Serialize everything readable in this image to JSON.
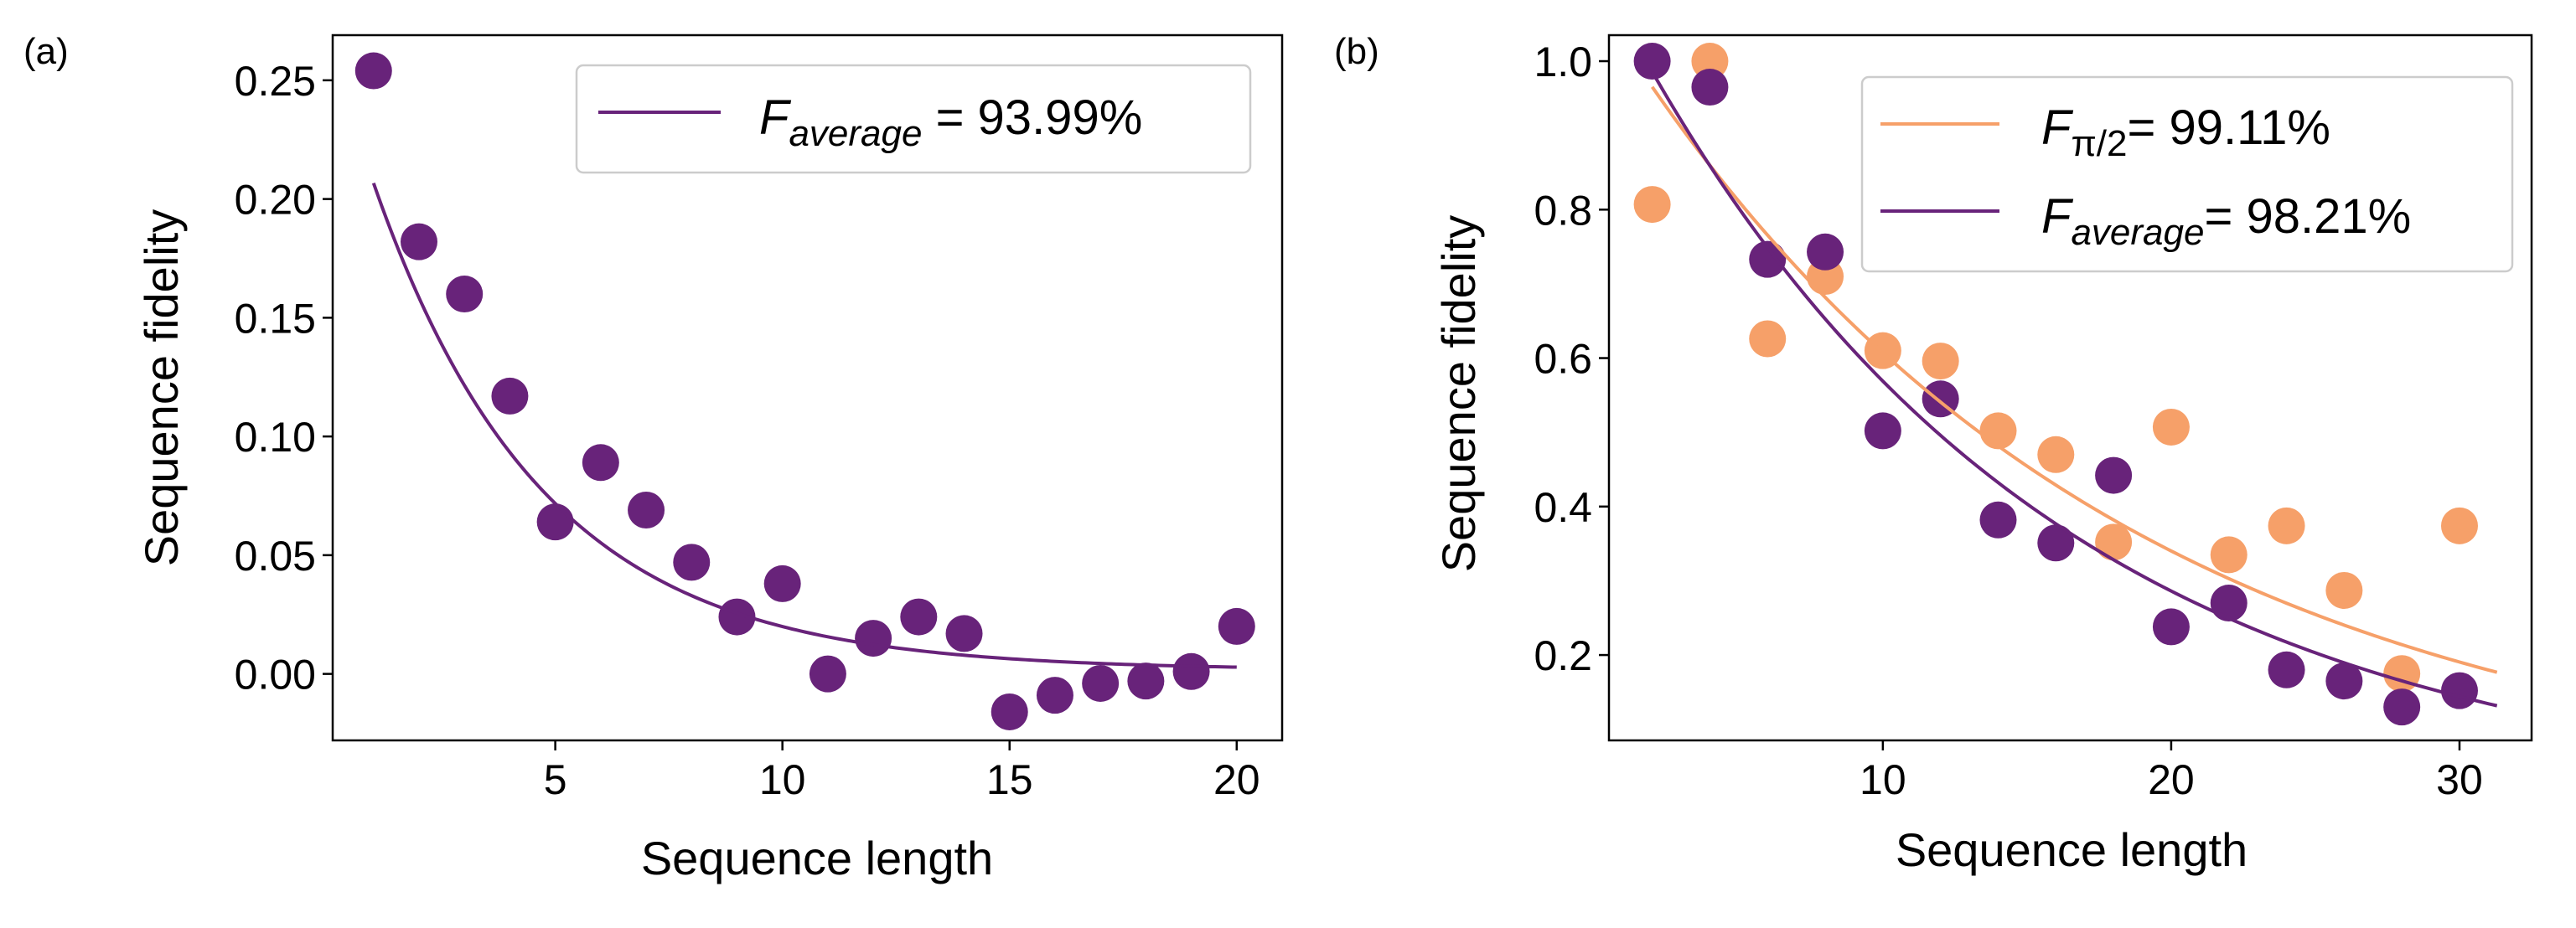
{
  "colors": {
    "purple": "#68237a",
    "orange": "#f6a069",
    "axis": "#000000",
    "legend_border": "#cccccc"
  },
  "chart_data": [
    {
      "panel_label": "(a)",
      "type": "scatter",
      "xlabel": "Sequence length",
      "ylabel": "Sequence fidelity",
      "xlim": [
        0.1,
        21.0
      ],
      "ylim": [
        -0.028,
        0.269
      ],
      "xticks": [
        5,
        10,
        15,
        20
      ],
      "xtick_labels": [
        "5",
        "10",
        "15",
        "20"
      ],
      "yticks": [
        0.0,
        0.05,
        0.1,
        0.15,
        0.2,
        0.25
      ],
      "ytick_labels": [
        "0.00",
        "0.05",
        "0.10",
        "0.15",
        "0.20",
        "0.25"
      ],
      "grid": false,
      "legend_placement": "top-right",
      "series": [
        {
          "name": "average",
          "color_key": "purple",
          "legend": {
            "symbol": "F",
            "subscript": "average",
            "suffix": " = 93.99%"
          },
          "points": {
            "x": [
              1,
              2,
              3,
              4,
              5,
              6,
              7,
              8,
              9,
              10,
              11,
              12,
              13,
              14,
              15,
              16,
              17,
              18,
              19,
              20
            ],
            "y": [
              0.254,
              0.182,
              0.16,
              0.117,
              0.064,
              0.089,
              0.069,
              0.047,
              0.024,
              0.038,
              0.0,
              0.015,
              0.024,
              0.017,
              -0.016,
              -0.009,
              -0.004,
              -0.003,
              0.001,
              0.02
            ]
          },
          "fit": {
            "model": "A*p^x + B",
            "A": 0.2682,
            "p": 0.7647,
            "B": 0.0016,
            "x_range": [
              1,
              20
            ]
          }
        }
      ]
    },
    {
      "panel_label": "(b)",
      "type": "scatter",
      "xlabel": "Sequence length",
      "ylabel": "Sequence fidelity",
      "xlim": [
        0.5,
        32.5
      ],
      "ylim": [
        0.085,
        1.035
      ],
      "xticks": [
        10,
        20,
        30
      ],
      "xtick_labels": [
        "10",
        "20",
        "30"
      ],
      "yticks": [
        0.2,
        0.4,
        0.6,
        0.8,
        1.0
      ],
      "ytick_labels": [
        "0.2",
        "0.4",
        "0.6",
        "0.8",
        "1.0"
      ],
      "grid": false,
      "legend_placement": "top-right",
      "series": [
        {
          "name": "pi/2",
          "color_key": "orange",
          "legend": {
            "symbol": "F",
            "subscript": "π/2",
            "suffix": "= 99.11%"
          },
          "points": {
            "x": [
              2,
              4,
              6,
              8,
              10,
              12,
              14,
              16,
              18,
              20,
              22,
              24,
              26,
              28,
              30
            ],
            "y": [
              0.807,
              1.0,
              0.626,
              0.71,
              0.61,
              0.596,
              0.502,
              0.47,
              0.352,
              0.507,
              0.335,
              0.374,
              0.287,
              0.175,
              0.374
            ]
          },
          "fit": {
            "model": "A*p^x",
            "A": 1.084,
            "p": 0.9437,
            "x_range": [
              2,
              31.3
            ]
          }
        },
        {
          "name": "average",
          "color_key": "purple",
          "legend": {
            "symbol": "F",
            "subscript": "average",
            "suffix": "= 98.21%"
          },
          "points": {
            "x": [
              2,
              4,
              6,
              8,
              10,
              12,
              14,
              16,
              18,
              20,
              22,
              24,
              26,
              28,
              30
            ],
            "y": [
              1.0,
              0.965,
              0.733,
              0.743,
              0.502,
              0.545,
              0.382,
              0.351,
              0.442,
              0.238,
              0.27,
              0.18,
              0.165,
              0.13,
              0.152
            ]
          },
          "fit": {
            "model": "A*p^x",
            "A": 1.131,
            "p": 0.9336,
            "x_range": [
              2,
              31.3
            ]
          }
        }
      ]
    }
  ]
}
